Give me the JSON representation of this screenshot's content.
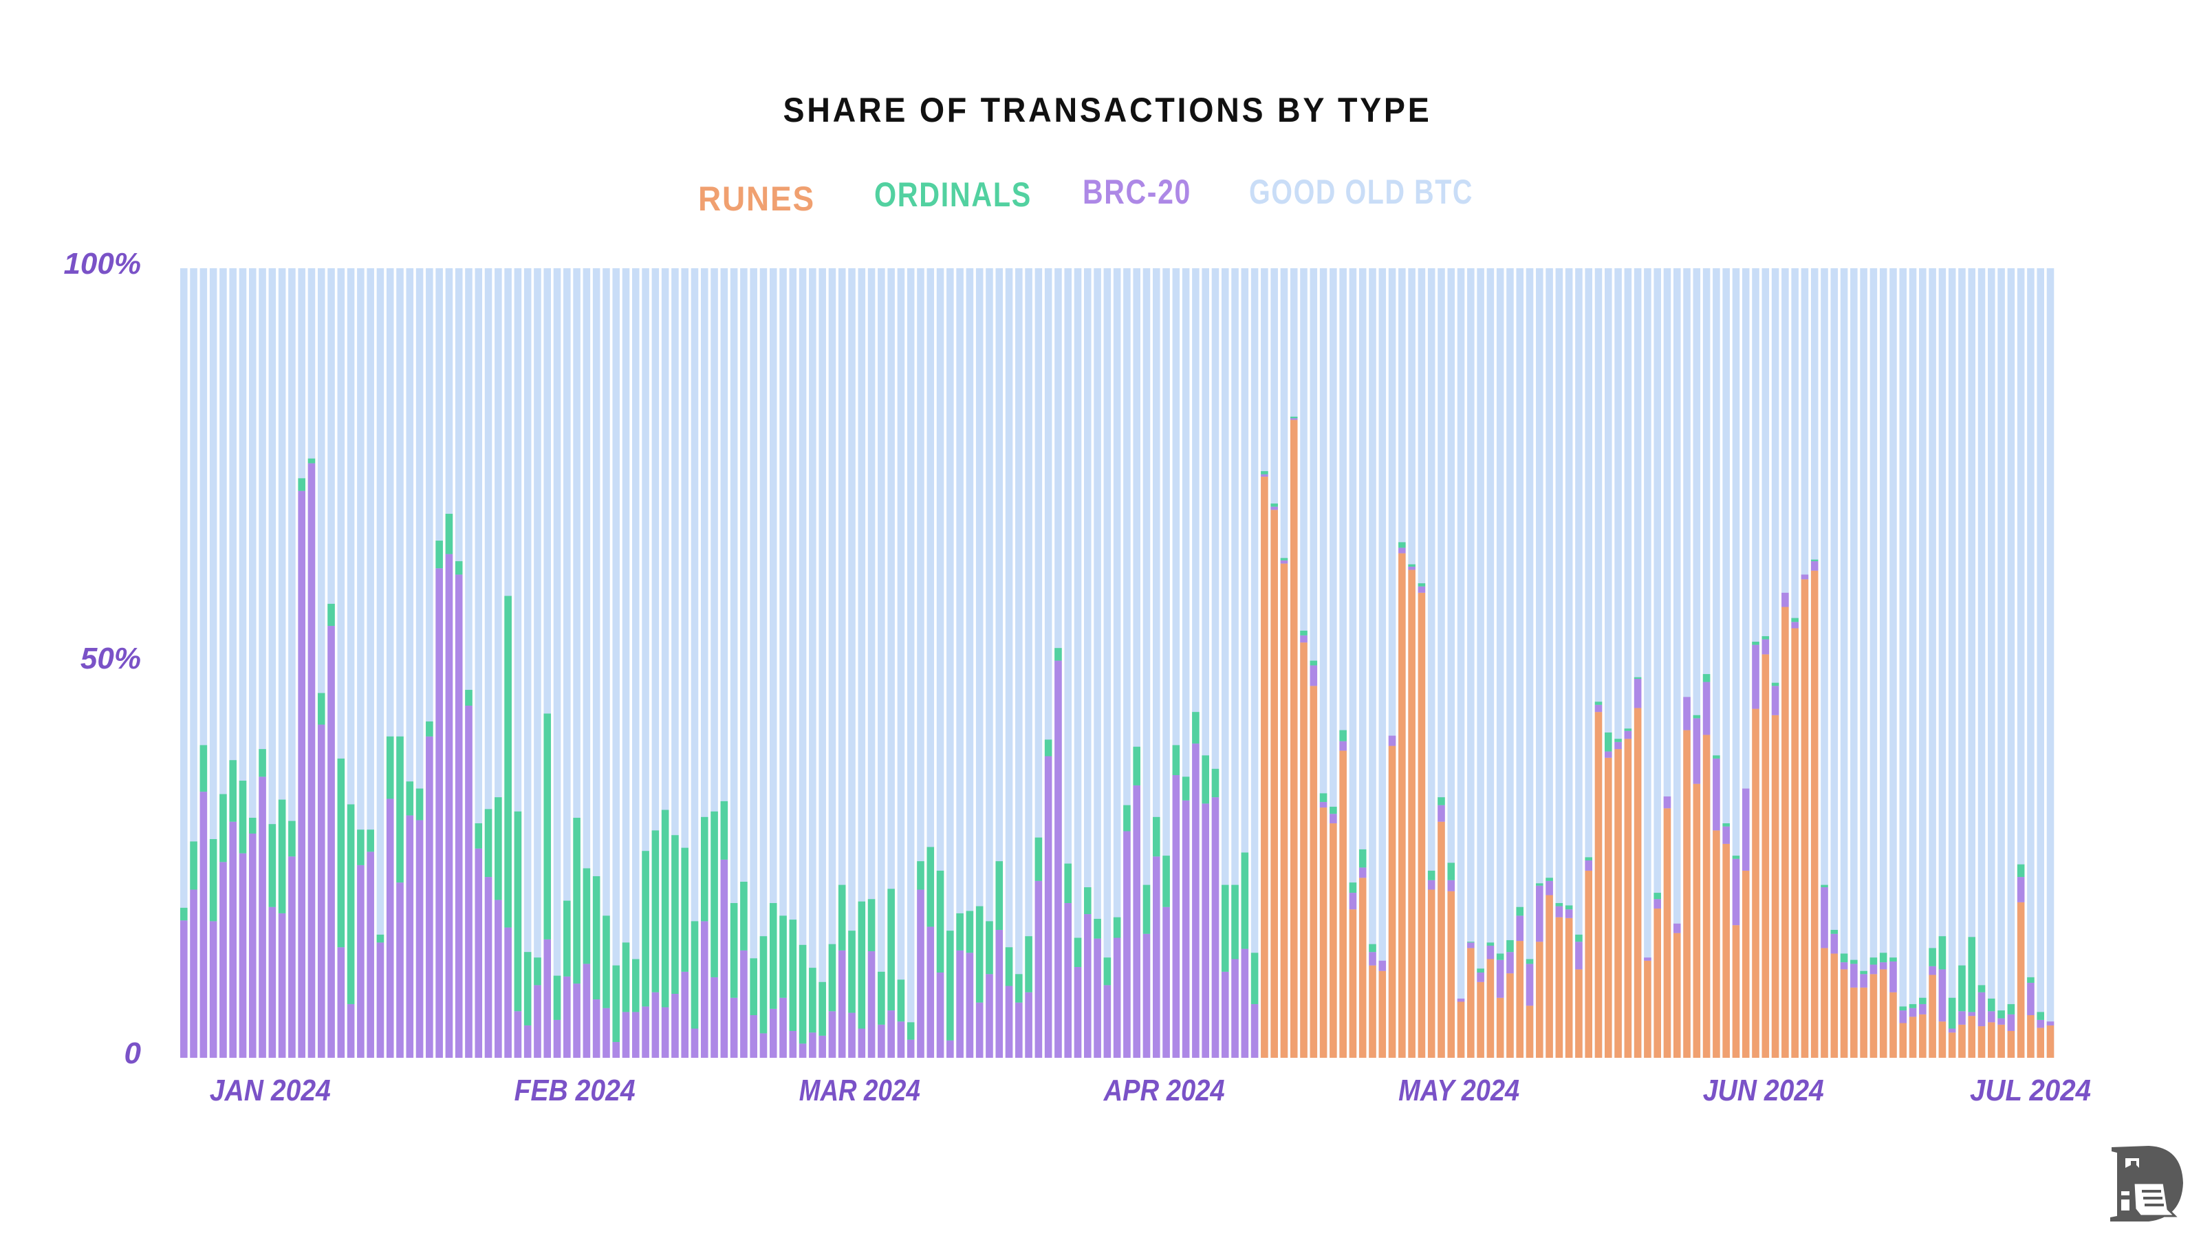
{
  "chart_data": {
    "type": "bar",
    "stacked": true,
    "percent_stacked": true,
    "title": "SHARE OF TRANSACTIONS BY TYPE",
    "legend_placement": "top-center",
    "grid": false,
    "ylim": [
      0,
      100
    ],
    "y_ticks": [
      {
        "label": "100%",
        "value": 100
      },
      {
        "label": "50%",
        "value": 50
      },
      {
        "label": "0",
        "value": 0
      }
    ],
    "x_ticks": [
      {
        "label": "JAN 2024",
        "date": "2024-01-01"
      },
      {
        "label": "FEB 2024",
        "date": "2024-02-01"
      },
      {
        "label": "MAR 2024",
        "date": "2024-03-01"
      },
      {
        "label": "APR 2024",
        "date": "2024-04-01"
      },
      {
        "label": "MAY 2024",
        "date": "2024-05-01"
      },
      {
        "label": "JUN 2024",
        "date": "2024-06-01"
      },
      {
        "label": "JUL 2024",
        "date": "2024-07-01"
      }
    ],
    "legend": [
      {
        "name": "RUNES",
        "color": "#f0a070"
      },
      {
        "name": "ORDINALS",
        "color": "#52d1a0"
      },
      {
        "name": "BRC-20",
        "color": "#ad88e6"
      },
      {
        "name": "GOOD OLD BTC",
        "color": "#c9ddf7"
      }
    ],
    "dates": [
      "2024-01-01",
      "2024-01-02",
      "2024-01-03",
      "2024-01-04",
      "2024-01-05",
      "2024-01-06",
      "2024-01-07",
      "2024-01-08",
      "2024-01-09",
      "2024-01-10",
      "2024-01-11",
      "2024-01-12",
      "2024-01-13",
      "2024-01-14",
      "2024-01-15",
      "2024-01-16",
      "2024-01-17",
      "2024-01-18",
      "2024-01-19",
      "2024-01-20",
      "2024-01-21",
      "2024-01-22",
      "2024-01-23",
      "2024-01-24",
      "2024-01-25",
      "2024-01-26",
      "2024-01-27",
      "2024-01-28",
      "2024-01-29",
      "2024-01-30",
      "2024-01-31",
      "2024-02-01",
      "2024-02-02",
      "2024-02-03",
      "2024-02-04",
      "2024-02-05",
      "2024-02-06",
      "2024-02-07",
      "2024-02-08",
      "2024-02-09",
      "2024-02-10",
      "2024-02-11",
      "2024-02-12",
      "2024-02-13",
      "2024-02-14",
      "2024-02-15",
      "2024-02-16",
      "2024-02-17",
      "2024-02-18",
      "2024-02-19",
      "2024-02-20",
      "2024-02-21",
      "2024-02-22",
      "2024-02-23",
      "2024-02-24",
      "2024-02-25",
      "2024-02-26",
      "2024-02-27",
      "2024-02-28",
      "2024-02-29",
      "2024-03-01",
      "2024-03-02",
      "2024-03-03",
      "2024-03-04",
      "2024-03-05",
      "2024-03-06",
      "2024-03-07",
      "2024-03-08",
      "2024-03-09",
      "2024-03-10",
      "2024-03-11",
      "2024-03-12",
      "2024-03-13",
      "2024-03-14",
      "2024-03-15",
      "2024-03-16",
      "2024-03-17",
      "2024-03-18",
      "2024-03-19",
      "2024-03-20",
      "2024-03-21",
      "2024-03-22",
      "2024-03-23",
      "2024-03-24",
      "2024-03-25",
      "2024-03-26",
      "2024-03-27",
      "2024-03-28",
      "2024-03-29",
      "2024-03-30",
      "2024-03-31",
      "2024-04-01",
      "2024-04-02",
      "2024-04-03",
      "2024-04-04",
      "2024-04-05",
      "2024-04-06",
      "2024-04-07",
      "2024-04-08",
      "2024-04-09",
      "2024-04-10",
      "2024-04-11",
      "2024-04-12",
      "2024-04-13",
      "2024-04-14",
      "2024-04-15",
      "2024-04-16",
      "2024-04-17",
      "2024-04-18",
      "2024-04-19",
      "2024-04-20",
      "2024-04-21",
      "2024-04-22",
      "2024-04-23",
      "2024-04-24",
      "2024-04-25",
      "2024-04-26",
      "2024-04-27",
      "2024-04-28",
      "2024-04-29",
      "2024-04-30",
      "2024-05-01",
      "2024-05-02",
      "2024-05-03",
      "2024-05-04",
      "2024-05-05",
      "2024-05-06",
      "2024-05-07",
      "2024-05-08",
      "2024-05-09",
      "2024-05-10",
      "2024-05-11",
      "2024-05-12",
      "2024-05-13",
      "2024-05-14",
      "2024-05-15",
      "2024-05-16",
      "2024-05-17",
      "2024-05-18",
      "2024-05-19",
      "2024-05-20",
      "2024-05-21",
      "2024-05-22",
      "2024-05-23",
      "2024-05-24",
      "2024-05-25",
      "2024-05-26",
      "2024-05-27",
      "2024-05-28",
      "2024-05-29",
      "2024-05-30",
      "2024-05-31",
      "2024-06-01",
      "2024-06-02",
      "2024-06-03",
      "2024-06-04",
      "2024-06-05",
      "2024-06-06",
      "2024-06-07",
      "2024-06-08",
      "2024-06-09",
      "2024-06-10",
      "2024-06-11",
      "2024-06-12",
      "2024-06-13",
      "2024-06-14",
      "2024-06-15",
      "2024-06-16",
      "2024-06-17",
      "2024-06-18",
      "2024-06-19",
      "2024-06-20",
      "2024-06-21",
      "2024-06-22",
      "2024-06-23",
      "2024-06-24",
      "2024-06-25",
      "2024-06-26",
      "2024-06-27",
      "2024-06-28",
      "2024-06-29",
      "2024-06-30",
      "2024-07-01",
      "2024-07-02",
      "2024-07-03",
      "2024-07-04",
      "2024-07-05",
      "2024-07-06",
      "2024-07-07",
      "2024-07-08",
      "2024-07-09"
    ],
    "series": [
      {
        "name": "RUNES",
        "color": "#f0a070",
        "values": [
          0,
          0,
          0,
          0,
          0,
          0,
          0,
          0,
          0,
          0,
          0,
          0,
          0,
          0,
          0,
          0,
          0,
          0,
          0,
          0,
          0,
          0,
          0,
          0,
          0,
          0,
          0,
          0,
          0,
          0,
          0,
          0,
          0,
          0,
          0,
          0,
          0,
          0,
          0,
          0,
          0,
          0,
          0,
          0,
          0,
          0,
          0,
          0,
          0,
          0,
          0,
          0,
          0,
          0,
          0,
          0,
          0,
          0,
          0,
          0,
          0,
          0,
          0,
          0,
          0,
          0,
          0,
          0,
          0,
          0,
          0,
          0,
          0,
          0,
          0,
          0,
          0,
          0,
          0,
          0,
          0,
          0,
          0,
          0,
          0,
          0,
          0,
          0,
          0,
          0,
          0,
          0,
          0,
          0,
          0,
          0,
          0,
          0,
          0,
          0,
          0,
          0,
          0,
          0,
          0,
          0,
          0,
          0,
          0,
          0,
          73.6,
          69.4,
          62.6,
          80.8,
          52.6,
          47.1,
          31.7,
          29.7,
          38.9,
          18.8,
          22.8,
          11.7,
          11.0,
          39.5,
          63.9,
          61.8,
          58.9,
          21.3,
          29.9,
          21.1,
          7.1,
          13.9,
          9.6,
          12.5,
          7.6,
          10.7,
          14.8,
          6.6,
          14.7,
          20.6,
          17.8,
          17.7,
          11.2,
          23.7,
          43.8,
          38.0,
          39.1,
          40.4,
          44.3,
          12.3,
          18.9,
          31.6,
          15.8,
          41.5,
          34.7,
          40.9,
          28.8,
          27.1,
          16.8,
          23.7,
          44.2,
          51.1,
          43.4,
          57.1,
          54.4,
          60.6,
          61.7,
          13.9,
          13.2,
          11.2,
          8.9,
          8.9,
          10.6,
          11.2,
          8.3,
          4.4,
          5.2,
          5.5,
          10.5,
          4.6,
          3.2,
          4.2,
          5.3,
          4.0,
          4.5,
          4.2,
          3.4,
          19.7,
          5.4,
          3.8,
          4.1
        ]
      },
      {
        "name": "BRC-20",
        "color": "#ad88e6",
        "values": [
          17.4,
          21.3,
          33.7,
          17.3,
          24.8,
          29.9,
          25.9,
          28.4,
          35.6,
          19.1,
          18.3,
          25.5,
          71.8,
          75.3,
          42.2,
          54.7,
          14.0,
          6.8,
          24.4,
          26.1,
          14.6,
          32.8,
          22.2,
          30.7,
          30.1,
          40.7,
          62.0,
          63.8,
          61.2,
          44.6,
          26.5,
          22.9,
          20.0,
          16.5,
          5.9,
          4.1,
          9.2,
          15.0,
          4.8,
          10.3,
          9.4,
          11.9,
          7.4,
          6.3,
          2.0,
          5.8,
          5.8,
          6.5,
          8.3,
          6.4,
          8.1,
          10.9,
          3.7,
          17.3,
          10.2,
          25.1,
          7.6,
          13.6,
          5.4,
          3.1,
          6.2,
          7.6,
          3.4,
          1.8,
          3.2,
          2.8,
          5.9,
          13.6,
          5.7,
          3.7,
          13.5,
          4.2,
          6.0,
          4.6,
          2.3,
          21.3,
          16.6,
          10.8,
          2.2,
          13.6,
          13.3,
          7.0,
          10.6,
          16.2,
          9.1,
          7.0,
          8.3,
          22.4,
          38.2,
          50.3,
          19.6,
          11.5,
          18.2,
          15.1,
          9.2,
          15.2,
          28.7,
          34.5,
          15.7,
          25.5,
          19.1,
          35.8,
          32.6,
          39.8,
          32.2,
          33.0,
          10.9,
          12.5,
          13.8,
          6.8,
          0.3,
          0.4,
          0.4,
          0.2,
          0.9,
          2.6,
          0.7,
          1.2,
          1.2,
          2.1,
          1.3,
          1.7,
          1.3,
          1.3,
          0.7,
          0.4,
          0.8,
          1.2,
          2.1,
          1.4,
          0.4,
          0.7,
          1.2,
          1.7,
          4.8,
          2.7,
          3.2,
          5.3,
          7.1,
          1.8,
          1.4,
          1.1,
          3.5,
          1.3,
          0.9,
          0.8,
          0.9,
          1.0,
          3.7,
          0.4,
          1.2,
          1.5,
          1.2,
          4.2,
          8.3,
          6.7,
          9.1,
          2.2,
          8.4,
          10.4,
          8.1,
          1.9,
          3.7,
          1.8,
          0.8,
          0.6,
          1.2,
          7.7,
          2.5,
          0.9,
          3.0,
          1.7,
          1.2,
          0.9,
          3.9,
          1.6,
          1.1,
          1.3,
          1.1,
          6.6,
          0.5,
          1.7,
          0.5,
          4.3,
          1.4,
          0.8,
          2.1,
          3.2,
          4.1,
          1.0,
          0.5
        ]
      },
      {
        "name": "ORDINALS",
        "color": "#52d1a0",
        "values": [
          1.6,
          6.1,
          5.9,
          10.4,
          8.6,
          7.8,
          9.2,
          2.0,
          3.5,
          10.5,
          14.4,
          4.5,
          1.6,
          0.6,
          4.0,
          2.8,
          23.9,
          25.3,
          4.5,
          2.8,
          1.0,
          7.9,
          18.5,
          4.3,
          4.0,
          1.9,
          3.5,
          5.1,
          1.7,
          2.0,
          3.2,
          8.6,
          13.0,
          42.0,
          25.3,
          9.3,
          3.5,
          28.6,
          5.6,
          9.6,
          21.0,
          12.1,
          15.6,
          11.7,
          9.7,
          8.8,
          6.7,
          19.7,
          20.5,
          25.0,
          20.1,
          15.7,
          13.6,
          13.2,
          21.0,
          7.4,
          12.0,
          8.7,
          7.2,
          12.3,
          13.4,
          10.4,
          14.1,
          12.5,
          8.2,
          6.8,
          8.5,
          8.3,
          10.4,
          16.1,
          6.6,
          6.7,
          15.4,
          5.3,
          2.2,
          3.6,
          10.1,
          12.9,
          13.9,
          4.7,
          5.3,
          12.2,
          6.7,
          8.7,
          4.9,
          3.6,
          7.1,
          5.5,
          2.1,
          1.6,
          5.0,
          3.7,
          3.4,
          2.5,
          3.5,
          2.6,
          3.3,
          4.9,
          6.2,
          5.0,
          6.5,
          3.8,
          3.0,
          4.0,
          6.1,
          3.6,
          11.0,
          9.4,
          12.2,
          6.5,
          0.4,
          0.4,
          0.3,
          0.2,
          0.6,
          0.6,
          1.1,
          0.9,
          1.4,
          1.3,
          2.3,
          1.0,
          0,
          0,
          0.7,
          0.3,
          0.4,
          1.2,
          1.0,
          2.2,
          0,
          0.1,
          0.5,
          0.4,
          0.8,
          1.5,
          1.1,
          0.6,
          0.3,
          0.4,
          0.4,
          0.5,
          0.9,
          0.4,
          0.4,
          2.4,
          0.4,
          0.3,
          0.2,
          0,
          0.8,
          0,
          0,
          0,
          0.4,
          1.0,
          0.4,
          0.4,
          0.4,
          0,
          0.4,
          0.4,
          0.4,
          0,
          0.5,
          0,
          0.2,
          0.3,
          0.5,
          1.1,
          0.5,
          0.4,
          0.9,
          1.2,
          0.5,
          0.5,
          0.5,
          0.8,
          2.3,
          4.2,
          3.9,
          5.8,
          9.5,
          0.9,
          1.6,
          1.0,
          1.3,
          1.6,
          0.7,
          1.0,
          0
        ]
      }
    ]
  },
  "logo": {
    "name": "publisher-logo",
    "color": "#5a5a5a"
  }
}
